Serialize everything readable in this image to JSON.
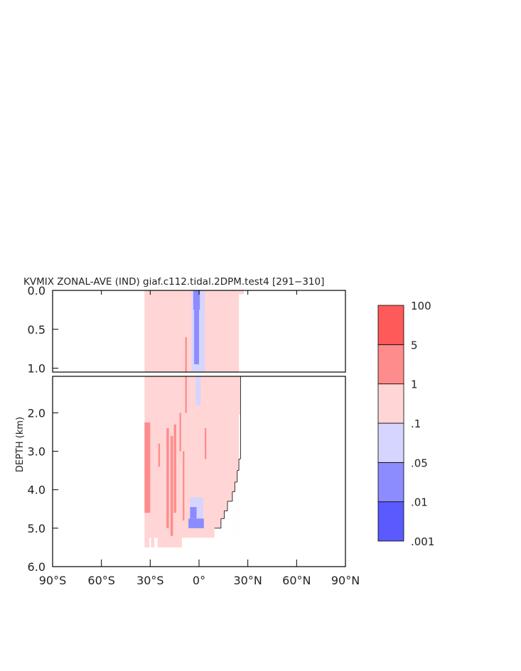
{
  "chart_data": {
    "type": "heatmap",
    "title": "KVMIX ZONAL-AVE (IND) giaf.c112.tidal.2DPM.test4 [291−310]",
    "xlabel": "",
    "ylabel": "DEPTH (km)",
    "x_range": [
      -90,
      90
    ],
    "x_ticks": [
      {
        "value": -90,
        "label": "90°S"
      },
      {
        "value": -60,
        "label": "60°S"
      },
      {
        "value": -30,
        "label": "30°S"
      },
      {
        "value": 0,
        "label": "0°"
      },
      {
        "value": 30,
        "label": "30°N"
      },
      {
        "value": 60,
        "label": "60°N"
      },
      {
        "value": 90,
        "label": "90°N"
      }
    ],
    "upper_panel": {
      "depth_range_km": [
        0.0,
        1.05
      ],
      "y_ticks": [
        {
          "value": 0.0,
          "label": "0.0"
        },
        {
          "value": 0.5,
          "label": "0.5"
        },
        {
          "value": 1.0,
          "label": "1.0"
        }
      ]
    },
    "lower_panel": {
      "depth_range_km": [
        1.05,
        6.0
      ],
      "y_ticks": [
        {
          "value": 2.0,
          "label": "2.0"
        },
        {
          "value": 3.0,
          "label": "3.0"
        },
        {
          "value": 4.0,
          "label": "4.0"
        },
        {
          "value": 5.0,
          "label": "5.0"
        },
        {
          "value": 6.0,
          "label": "6.0"
        }
      ]
    },
    "colorbar": {
      "levels": [
        ".001",
        ".01",
        ".05",
        ".1",
        "1",
        "5",
        "100"
      ],
      "colors": [
        "#5a5aff",
        "#8c8cff",
        "#d5d5ff",
        "#ffd5d5",
        "#ff8c8c",
        "#ff5a5a"
      ]
    },
    "regions": [
      {
        "lat": [
          -33.5,
          24.5
        ],
        "depth": [
          0.0,
          5.25
        ],
        "color": "#ffd5d5"
      },
      {
        "lat": [
          24.5,
          27.5
        ],
        "depth": [
          0.0,
          0.05
        ],
        "color": "#ffd5d5"
      },
      {
        "lat": [
          24.5,
          25.5
        ],
        "depth": [
          1.05,
          2.05
        ],
        "color": "#ffd5d5"
      },
      {
        "lat": [
          -33.5,
          -30.5
        ],
        "depth": [
          5.25,
          5.5
        ],
        "color": "#ffd5d5"
      },
      {
        "lat": [
          -29.5,
          -27.5
        ],
        "depth": [
          5.25,
          5.5
        ],
        "color": "#ffd5d5"
      },
      {
        "lat": [
          -25.5,
          -10.5
        ],
        "depth": [
          5.25,
          5.5
        ],
        "color": "#ffd5d5"
      },
      {
        "lat": [
          -4.5,
          3.5
        ],
        "depth": [
          0.0,
          1.05
        ],
        "color": "#d5d5ff"
      },
      {
        "lat": [
          -3.5,
          0.5
        ],
        "depth": [
          0.0,
          0.25
        ],
        "color": "#8c8cff"
      },
      {
        "lat": [
          -3.0,
          0.0
        ],
        "depth": [
          0.25,
          0.95
        ],
        "color": "#8c8cff"
      },
      {
        "lat": [
          -2.0,
          1.0
        ],
        "depth": [
          1.05,
          1.8
        ],
        "color": "#d5d5ff"
      },
      {
        "lat": [
          -5.5,
          2.5
        ],
        "depth": [
          4.2,
          4.75
        ],
        "color": "#d5d5ff"
      },
      {
        "lat": [
          -6.5,
          3.0
        ],
        "depth": [
          4.75,
          5.0
        ],
        "color": "#8c8cff"
      },
      {
        "lat": [
          -5.5,
          -1.5
        ],
        "depth": [
          4.45,
          4.75
        ],
        "color": "#8c8cff"
      },
      {
        "lat": [
          -33.5,
          -30.0
        ],
        "depth": [
          2.25,
          4.6
        ],
        "color": "#ff8c8c"
      },
      {
        "lat": [
          -20.0,
          -18.5
        ],
        "depth": [
          2.4,
          5.0
        ],
        "color": "#ff8c8c"
      },
      {
        "lat": [
          -17.5,
          -16.0
        ],
        "depth": [
          2.6,
          5.2
        ],
        "color": "#ff8c8c"
      },
      {
        "lat": [
          -15.5,
          -14.0
        ],
        "depth": [
          2.3,
          4.6
        ],
        "color": "#ff8c8c"
      },
      {
        "lat": [
          -12.0,
          -11.0
        ],
        "depth": [
          2.0,
          3.0
        ],
        "color": "#ff8c8c"
      },
      {
        "lat": [
          -10.0,
          -9.0
        ],
        "depth": [
          3.0,
          4.8
        ],
        "color": "#ff8c8c"
      },
      {
        "lat": [
          -8.5,
          -7.5
        ],
        "depth": [
          0.6,
          2.0
        ],
        "color": "#ff8c8c"
      },
      {
        "lat": [
          -25.0,
          -24.0
        ],
        "depth": [
          2.8,
          3.4
        ],
        "color": "#ff8c8c"
      },
      {
        "lat": [
          3.5,
          4.5
        ],
        "depth": [
          2.4,
          3.2
        ],
        "color": "#ff8c8c"
      }
    ],
    "bathymetry_steps": [
      {
        "lat": 24.5,
        "depth": 3.2
      },
      {
        "lat": 23.5,
        "depth": 3.5
      },
      {
        "lat": 22.0,
        "depth": 3.8
      },
      {
        "lat": 20.5,
        "depth": 4.05
      },
      {
        "lat": 17.5,
        "depth": 4.3
      },
      {
        "lat": 15.5,
        "depth": 4.55
      },
      {
        "lat": 13.5,
        "depth": 4.75
      },
      {
        "lat": 9.5,
        "depth": 5.0
      }
    ]
  }
}
